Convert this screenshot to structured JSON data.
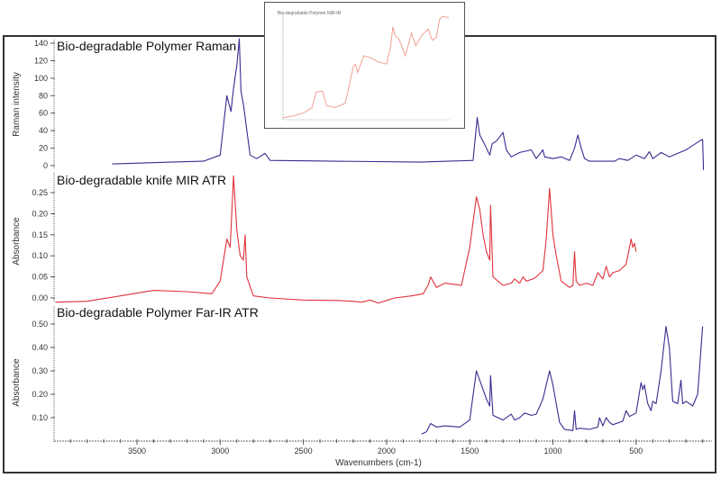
{
  "chart_data": [
    {
      "type": "line",
      "title": "Bio-degradable Polymer Raman",
      "xlabel": "Wavenumbers (cm-1)",
      "ylabel": "Raman intensity",
      "xlim": [
        3990,
        70
      ],
      "ylim": [
        -5,
        145
      ],
      "yticks": [
        0,
        20,
        40,
        60,
        80,
        100,
        120,
        140
      ],
      "color": "#3a2a8f",
      "series": [
        {
          "name": "Raman",
          "x": [
            3650,
            3300,
            3100,
            3000,
            2960,
            2935,
            2920,
            2900,
            2885,
            2875,
            2860,
            2850,
            2820,
            2780,
            2730,
            2700,
            1800,
            1480,
            1455,
            1440,
            1420,
            1380,
            1365,
            1340,
            1300,
            1280,
            1250,
            1200,
            1130,
            1100,
            1060,
            1050,
            1000,
            950,
            900,
            870,
            850,
            830,
            810,
            780,
            700,
            630,
            600,
            550,
            500,
            450,
            420,
            400,
            350,
            300,
            200,
            120,
            100,
            95
          ],
          "y": [
            2,
            4,
            5,
            12,
            80,
            62,
            88,
            115,
            145,
            85,
            70,
            55,
            12,
            8,
            14,
            6,
            4,
            6,
            55,
            35,
            28,
            12,
            25,
            28,
            38,
            18,
            10,
            15,
            18,
            8,
            18,
            10,
            8,
            10,
            6,
            20,
            35,
            20,
            8,
            5,
            5,
            5,
            8,
            6,
            12,
            8,
            16,
            8,
            15,
            10,
            18,
            28,
            30,
            -5
          ]
        }
      ]
    },
    {
      "type": "line",
      "title": "Bio-degradable knife MIR ATR",
      "xlabel": "Wavenumbers (cm-1)",
      "ylabel": "Absorbance",
      "ylim": [
        -0.02,
        0.3
      ],
      "yticks": [
        0.0,
        0.05,
        0.1,
        0.15,
        0.2,
        0.25
      ],
      "color": "#e0323c",
      "series": [
        {
          "name": "MIR ATR",
          "x": [
            3990,
            3800,
            3600,
            3400,
            3200,
            3050,
            3000,
            2960,
            2940,
            2920,
            2900,
            2880,
            2860,
            2850,
            2840,
            2800,
            2700,
            2500,
            2300,
            2200,
            2150,
            2100,
            2050,
            2000,
            1950,
            1850,
            1780,
            1750,
            1735,
            1700,
            1650,
            1550,
            1500,
            1460,
            1440,
            1420,
            1400,
            1380,
            1375,
            1360,
            1300,
            1250,
            1230,
            1200,
            1180,
            1160,
            1120,
            1100,
            1060,
            1040,
            1020,
            1000,
            980,
            950,
            900,
            880,
            870,
            860,
            840,
            800,
            760,
            730,
            720,
            700,
            680,
            660,
            640,
            600,
            560,
            530,
            520,
            510,
            500
          ],
          "y": [
            -0.01,
            -0.008,
            0.005,
            0.018,
            0.015,
            0.01,
            0.04,
            0.14,
            0.12,
            0.29,
            0.16,
            0.1,
            0.09,
            0.15,
            0.05,
            0.005,
            0.0,
            -0.005,
            -0.006,
            -0.008,
            -0.01,
            -0.005,
            -0.012,
            -0.006,
            0.0,
            0.005,
            0.01,
            0.03,
            0.05,
            0.025,
            0.035,
            0.03,
            0.12,
            0.24,
            0.21,
            0.15,
            0.11,
            0.09,
            0.22,
            0.05,
            0.03,
            0.035,
            0.045,
            0.035,
            0.05,
            0.04,
            0.045,
            0.05,
            0.065,
            0.14,
            0.26,
            0.15,
            0.1,
            0.04,
            0.025,
            0.03,
            0.11,
            0.04,
            0.03,
            0.035,
            0.03,
            0.06,
            0.055,
            0.045,
            0.075,
            0.05,
            0.06,
            0.065,
            0.08,
            0.14,
            0.12,
            0.13,
            0.11
          ]
        }
      ]
    },
    {
      "type": "line",
      "title": "Bio-degradable Polymer Far-IR ATR",
      "xlabel": "Wavenumbers (cm-1)",
      "ylabel": "Absorbance",
      "ylim": [
        0.02,
        0.52
      ],
      "yticks": [
        0.1,
        0.2,
        0.3,
        0.4,
        0.5
      ],
      "xticks": [
        3500,
        3000,
        2500,
        2000,
        1500,
        1000,
        500
      ],
      "color": "#3a2a8f",
      "series": [
        {
          "name": "Far-IR ATR",
          "x": [
            1790,
            1760,
            1735,
            1700,
            1650,
            1560,
            1500,
            1460,
            1440,
            1400,
            1380,
            1375,
            1360,
            1300,
            1250,
            1230,
            1200,
            1170,
            1130,
            1100,
            1060,
            1020,
            1000,
            960,
            930,
            880,
            870,
            860,
            840,
            780,
            730,
            720,
            700,
            680,
            660,
            640,
            580,
            560,
            540,
            500,
            470,
            460,
            450,
            430,
            410,
            400,
            380,
            350,
            320,
            300,
            280,
            250,
            230,
            220,
            200,
            160,
            130,
            100
          ],
          "y": [
            0.03,
            0.04,
            0.075,
            0.06,
            0.065,
            0.06,
            0.09,
            0.3,
            0.26,
            0.18,
            0.15,
            0.28,
            0.11,
            0.09,
            0.115,
            0.09,
            0.1,
            0.12,
            0.11,
            0.115,
            0.18,
            0.3,
            0.24,
            0.08,
            0.05,
            0.045,
            0.13,
            0.05,
            0.055,
            0.05,
            0.06,
            0.1,
            0.065,
            0.1,
            0.08,
            0.07,
            0.085,
            0.13,
            0.105,
            0.12,
            0.25,
            0.22,
            0.24,
            0.16,
            0.13,
            0.17,
            0.16,
            0.3,
            0.49,
            0.4,
            0.17,
            0.16,
            0.26,
            0.16,
            0.17,
            0.15,
            0.2,
            0.49
          ]
        }
      ]
    },
    {
      "type": "line",
      "title": "Bio-degradable Polymer NIR-IR",
      "note": "inset, illegible small text",
      "color": "#f0a090",
      "series": [
        {
          "name": "NIR",
          "x": [
            0,
            10,
            20,
            28,
            32,
            38,
            42,
            50,
            60,
            68,
            70,
            72,
            78,
            85,
            92,
            100,
            104,
            106,
            108,
            112,
            115,
            118,
            124,
            128,
            134,
            140,
            144,
            148,
            151,
            154,
            160
          ],
          "y": [
            0,
            2,
            5,
            10,
            25,
            26,
            12,
            10,
            14,
            50,
            52,
            44,
            60,
            58,
            54,
            52,
            70,
            88,
            80,
            76,
            68,
            60,
            82,
            70,
            80,
            86,
            75,
            78,
            95,
            98,
            97
          ]
        }
      ]
    }
  ],
  "panels": [
    {
      "title": "Bio-degradable Polymer Raman",
      "ylabel": "Raman intensity",
      "yticks": [
        "140",
        "120",
        "100",
        "80",
        "60",
        "40",
        "20",
        "0"
      ]
    },
    {
      "title": "Bio-degradable knife MIR ATR",
      "ylabel": "Absorbance",
      "yticks": [
        "0.25",
        "0.20",
        "0.15",
        "0.10",
        "0.05",
        "0.00"
      ]
    },
    {
      "title": "Bio-degradable Polymer Far-IR ATR",
      "ylabel": "Absorbance",
      "yticks": [
        "0.50",
        "0.40",
        "0.30",
        "0.20",
        "0.10"
      ]
    }
  ],
  "xaxis": {
    "label": "Wavenumbers (cm-1)",
    "ticks": [
      "3500",
      "3000",
      "2500",
      "2000",
      "1500",
      "1000",
      "500"
    ]
  },
  "inset": {
    "title": "Bio-degradable Polymer NIR-IR"
  }
}
